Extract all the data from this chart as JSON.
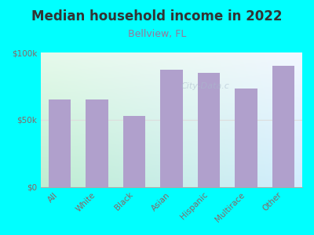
{
  "title": "Median household income in 2022",
  "subtitle": "Bellview, FL",
  "categories": [
    "All",
    "White",
    "Black",
    "Asian",
    "Hispanic",
    "Multirace",
    "Other"
  ],
  "values": [
    65000,
    65000,
    53000,
    87000,
    85000,
    73000,
    90000
  ],
  "bar_color": "#b0a0cc",
  "background_color": "#00ffff",
  "title_color": "#333333",
  "subtitle_color": "#997799",
  "axis_label_color": "#886666",
  "tick_color": "#886666",
  "ylim": [
    0,
    100000
  ],
  "yticks": [
    0,
    50000,
    100000
  ],
  "ytick_labels": [
    "$0",
    "$50k",
    "$100k"
  ],
  "title_fontsize": 12,
  "subtitle_fontsize": 9,
  "tick_fontsize": 7.5,
  "watermark_text": "City-Data.c",
  "watermark_color": "#aabbcc",
  "watermark_alpha": 0.55,
  "grid_color": "#dddddd",
  "plot_grad_colors": [
    "#c8eedd",
    "#e8f8ee",
    "#ddeeff",
    "#f0f8ff"
  ]
}
